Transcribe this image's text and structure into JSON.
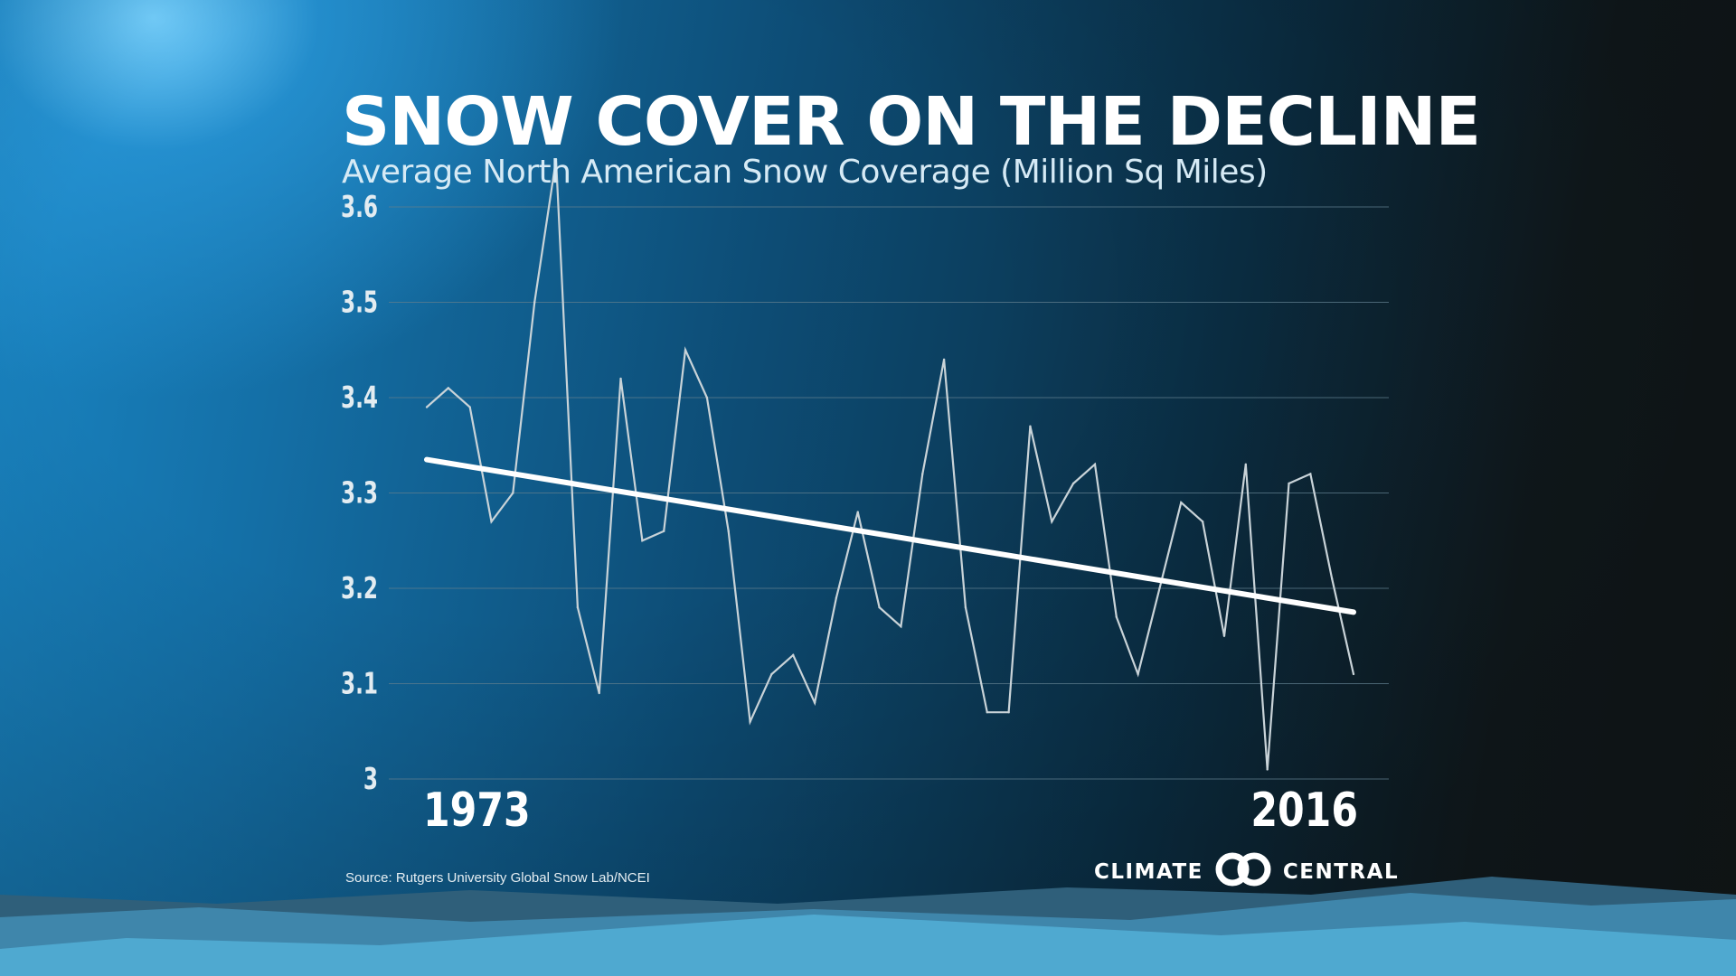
{
  "title": "SNOW COVER ON THE DECLINE",
  "subtitle": "Average North American Snow Coverage (Million Sq Miles)",
  "source": "Source: Rutgers University Global Snow Lab/NCEI",
  "logo": {
    "left": "CLIMATE",
    "right": "CENTRAL",
    "mark_icon": "interlocking-circles-icon"
  },
  "colors": {
    "line": "#c9d3d8",
    "trend": "#ffffff",
    "grid": "#5f7e8e",
    "tick": "#e3ecf1",
    "mountain_back": "#2f5f7a",
    "mountain_mid": "#3f86ab",
    "mountain_front": "#4fa9d0"
  },
  "chart_data": {
    "type": "line",
    "title": "SNOW COVER ON THE DECLINE",
    "subtitle": "Average North American Snow Coverage (Million Sq Miles)",
    "xlabel": "",
    "ylabel": "",
    "x_tick_labels": [
      "1973",
      "2016"
    ],
    "y_ticks": [
      3,
      3.1,
      3.2,
      3.3,
      3.4,
      3.5,
      3.6
    ],
    "y_tick_labels": [
      "3",
      "3.1",
      "3.2",
      "3.3",
      "3.4",
      "3.5",
      "3.6"
    ],
    "ylim": [
      3.0,
      3.65
    ],
    "xlim": [
      1973,
      2016
    ],
    "grid": true,
    "series": [
      {
        "name": "Average snow coverage",
        "x": [
          1973,
          1974,
          1975,
          1976,
          1977,
          1978,
          1979,
          1980,
          1981,
          1982,
          1983,
          1984,
          1985,
          1986,
          1987,
          1988,
          1989,
          1990,
          1991,
          1992,
          1993,
          1994,
          1995,
          1996,
          1997,
          1998,
          1999,
          2000,
          2001,
          2002,
          2003,
          2004,
          2005,
          2006,
          2007,
          2008,
          2009,
          2010,
          2011,
          2012,
          2013,
          2014,
          2015,
          2016
        ],
        "values": [
          3.39,
          3.41,
          3.39,
          3.27,
          3.3,
          3.5,
          3.65,
          3.18,
          3.09,
          3.42,
          3.25,
          3.26,
          3.45,
          3.4,
          3.26,
          3.06,
          3.11,
          3.13,
          3.08,
          3.19,
          3.28,
          3.18,
          3.16,
          3.32,
          3.44,
          3.18,
          3.07,
          3.07,
          3.37,
          3.27,
          3.31,
          3.33,
          3.17,
          3.11,
          3.2,
          3.29,
          3.27,
          3.15,
          3.33,
          3.01,
          3.31,
          3.32,
          3.21,
          3.11
        ]
      },
      {
        "name": "Trend",
        "x": [
          1973,
          2016
        ],
        "values": [
          3.335,
          3.175
        ]
      }
    ]
  }
}
